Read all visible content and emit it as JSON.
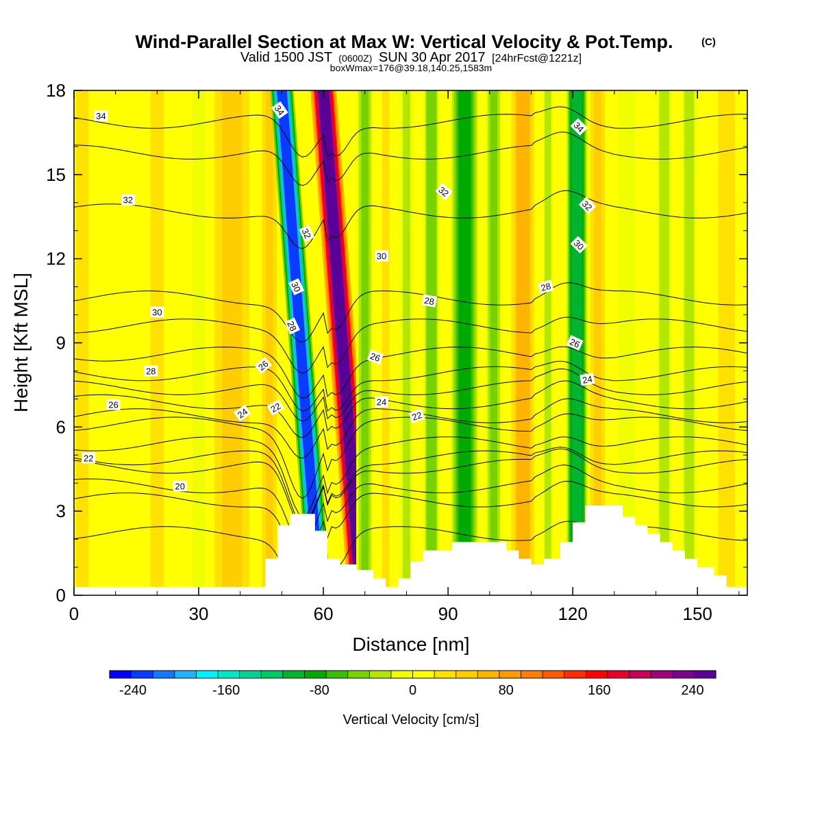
{
  "chart_data": {
    "type": "heatmap",
    "title": "Wind-Parallel Section at Max W: Vertical Velocity & Pot.Temp.",
    "title_mark": "(C)",
    "subtitle": {
      "prefix": "Valid 1500 JST",
      "utc": "(0600Z)",
      "date": "SUN 30 Apr 2017",
      "forecast": "[24hrFcst@1221z]"
    },
    "subtitle2": "boxWmax=176@39.18,140.25,1583m",
    "xlabel": "Distance [nm]",
    "ylabel": "Height [Kft MSL]",
    "xlim": [
      0,
      162
    ],
    "ylim": [
      0,
      18
    ],
    "xticks": [
      0,
      30,
      60,
      90,
      120,
      150
    ],
    "yticks": [
      0,
      3,
      6,
      9,
      12,
      15,
      18
    ],
    "colorbar": {
      "label": "Vertical Velocity [cm/s]",
      "range": [
        -260,
        260
      ],
      "tick_values": [
        -240,
        -160,
        -80,
        0,
        80,
        160,
        240
      ],
      "tick_labels": [
        "-240",
        "-160",
        "-80",
        "0",
        "80",
        "160",
        "240"
      ],
      "colors": [
        "#0000ff",
        "#0a3cff",
        "#1478ff",
        "#1eb4ff",
        "#00f0ff",
        "#00e6c8",
        "#00d296",
        "#00c864",
        "#00b432",
        "#00aa00",
        "#3cbe00",
        "#78d200",
        "#b4e600",
        "#f0ff00",
        "#ffff00",
        "#ffe100",
        "#ffcd00",
        "#ffb400",
        "#ff9b00",
        "#ff7d00",
        "#ff5a00",
        "#ff2d00",
        "#ff0000",
        "#e6002d",
        "#c8005a",
        "#a00078",
        "#7d008c",
        "#5a0096"
      ]
    },
    "velocity_bands": [
      {
        "x": 2,
        "width": 3,
        "value": 25
      },
      {
        "x": 10,
        "width": 4,
        "value": 18
      },
      {
        "x": 20,
        "width": 4,
        "value": 22
      },
      {
        "x": 30,
        "width": 3,
        "value": -10
      },
      {
        "x": 38,
        "width": 6,
        "value": 55
      },
      {
        "x": 47,
        "width": 3,
        "value": 40
      },
      {
        "x": 54.5,
        "width": 4,
        "value": -235,
        "tilt": 5
      },
      {
        "x": 64.5,
        "width": 4.5,
        "value": 250,
        "tilt": 5
      },
      {
        "x": 70,
        "width": 3,
        "value": -45
      },
      {
        "x": 75,
        "width": 3,
        "value": 20
      },
      {
        "x": 80,
        "width": 3,
        "value": -20
      },
      {
        "x": 86,
        "width": 3,
        "value": -50
      },
      {
        "x": 94,
        "width": 5,
        "value": -75
      },
      {
        "x": 101,
        "width": 3,
        "value": -45
      },
      {
        "x": 108,
        "width": 4,
        "value": 70
      },
      {
        "x": 114,
        "width": 2,
        "value": -30
      },
      {
        "x": 121,
        "width": 4,
        "value": -105
      },
      {
        "x": 126,
        "width": 3,
        "value": 40
      },
      {
        "x": 133,
        "width": 4,
        "value": -15
      },
      {
        "x": 142,
        "width": 3,
        "value": -30
      },
      {
        "x": 148,
        "width": 3,
        "value": -35
      },
      {
        "x": 157,
        "width": 4,
        "value": 25
      }
    ],
    "theta_contours": [
      {
        "level": 18,
        "base_height": 2.2
      },
      {
        "level": 19,
        "base_height": 3.4
      },
      {
        "level": 20,
        "base_height": 3.9
      },
      {
        "level": 21,
        "base_height": 4.6
      },
      {
        "level": 22,
        "base_height": 4.9
      },
      {
        "level": 23,
        "base_height": 5.4
      },
      {
        "level": 24,
        "base_height": 6.1
      },
      {
        "level": 25,
        "base_height": 6.4
      },
      {
        "level": 26,
        "base_height": 6.9
      },
      {
        "level": 27,
        "base_height": 7.4
      },
      {
        "level": 28,
        "base_height": 7.9
      },
      {
        "level": 29,
        "base_height": 8.6
      },
      {
        "level": 30,
        "base_height": 9.6
      },
      {
        "level": 31,
        "base_height": 10.6
      },
      {
        "level": 32,
        "base_height": 13.7
      },
      {
        "level": 33,
        "base_height": 15.8
      },
      {
        "level": 34,
        "base_height": 16.9
      }
    ],
    "contour_labels": [
      {
        "text": "34",
        "x": 6.5,
        "y": 17.1,
        "angle": 0
      },
      {
        "text": "32",
        "x": 13,
        "y": 14.1,
        "angle": 0
      },
      {
        "text": "30",
        "x": 20,
        "y": 10.1,
        "angle": 0
      },
      {
        "text": "28",
        "x": 18.5,
        "y": 8.0,
        "angle": 0
      },
      {
        "text": "26",
        "x": 9.5,
        "y": 6.8,
        "angle": 0
      },
      {
        "text": "22",
        "x": 3.5,
        "y": 4.9,
        "angle": 0
      },
      {
        "text": "20",
        "x": 25.5,
        "y": 3.9,
        "angle": 0
      },
      {
        "text": "24",
        "x": 40.5,
        "y": 6.5,
        "angle": -35
      },
      {
        "text": "22",
        "x": 48.5,
        "y": 6.7,
        "angle": -30
      },
      {
        "text": "26",
        "x": 45.5,
        "y": 8.2,
        "angle": -40
      },
      {
        "text": "28",
        "x": 52.5,
        "y": 9.6,
        "angle": 65
      },
      {
        "text": "30",
        "x": 53.5,
        "y": 11.0,
        "angle": 65
      },
      {
        "text": "32",
        "x": 56,
        "y": 12.9,
        "angle": 65
      },
      {
        "text": "34",
        "x": 49.5,
        "y": 17.3,
        "angle": 55
      },
      {
        "text": "30",
        "x": 74,
        "y": 12.1,
        "angle": 0
      },
      {
        "text": "28",
        "x": 85.5,
        "y": 10.5,
        "angle": 10
      },
      {
        "text": "26",
        "x": 72.5,
        "y": 8.5,
        "angle": 20
      },
      {
        "text": "24",
        "x": 74,
        "y": 6.9,
        "angle": 0
      },
      {
        "text": "22",
        "x": 82.5,
        "y": 6.4,
        "angle": -20
      },
      {
        "text": "32",
        "x": 89,
        "y": 14.4,
        "angle": 40
      },
      {
        "text": "28",
        "x": 113.5,
        "y": 11.0,
        "angle": -15
      },
      {
        "text": "26",
        "x": 120.5,
        "y": 9.0,
        "angle": 25
      },
      {
        "text": "24",
        "x": 123.5,
        "y": 7.7,
        "angle": -10
      },
      {
        "text": "30",
        "x": 121.5,
        "y": 12.5,
        "angle": 45
      },
      {
        "text": "32",
        "x": 123.5,
        "y": 13.9,
        "angle": 45
      },
      {
        "text": "34",
        "x": 121.5,
        "y": 16.7,
        "angle": 45
      }
    ],
    "terrain": [
      [
        0,
        0.3
      ],
      [
        46,
        0.3
      ],
      [
        46,
        1.3
      ],
      [
        49,
        1.3
      ],
      [
        49,
        2.5
      ],
      [
        52,
        2.5
      ],
      [
        52,
        2.9
      ],
      [
        58,
        2.9
      ],
      [
        58,
        2.3
      ],
      [
        61,
        2.3
      ],
      [
        61,
        1.3
      ],
      [
        64,
        1.3
      ],
      [
        64,
        1.1
      ],
      [
        68,
        1.1
      ],
      [
        68,
        0.9
      ],
      [
        72,
        0.9
      ],
      [
        72,
        0.6
      ],
      [
        75,
        0.6
      ],
      [
        75,
        0.3
      ],
      [
        78,
        0.3
      ],
      [
        78,
        0.6
      ],
      [
        81,
        0.6
      ],
      [
        81,
        1.2
      ],
      [
        84,
        1.2
      ],
      [
        84,
        1.6
      ],
      [
        91,
        1.6
      ],
      [
        91,
        1.9
      ],
      [
        104,
        1.9
      ],
      [
        104,
        1.6
      ],
      [
        107,
        1.6
      ],
      [
        107,
        1.3
      ],
      [
        110,
        1.3
      ],
      [
        110,
        1.1
      ],
      [
        113,
        1.1
      ],
      [
        113,
        1.3
      ],
      [
        117,
        1.3
      ],
      [
        117,
        1.9
      ],
      [
        120,
        1.9
      ],
      [
        120,
        2.6
      ],
      [
        123,
        2.6
      ],
      [
        123,
        3.2
      ],
      [
        132,
        3.2
      ],
      [
        132,
        2.8
      ],
      [
        135,
        2.8
      ],
      [
        135,
        2.5
      ],
      [
        138,
        2.5
      ],
      [
        138,
        2.2
      ],
      [
        141,
        2.2
      ],
      [
        141,
        1.9
      ],
      [
        144,
        1.9
      ],
      [
        144,
        1.6
      ],
      [
        147,
        1.6
      ],
      [
        147,
        1.3
      ],
      [
        150,
        1.3
      ],
      [
        150,
        1.0
      ],
      [
        154,
        1.0
      ],
      [
        154,
        0.7
      ],
      [
        157,
        0.7
      ],
      [
        157,
        0.3
      ],
      [
        162,
        0.3
      ]
    ]
  }
}
